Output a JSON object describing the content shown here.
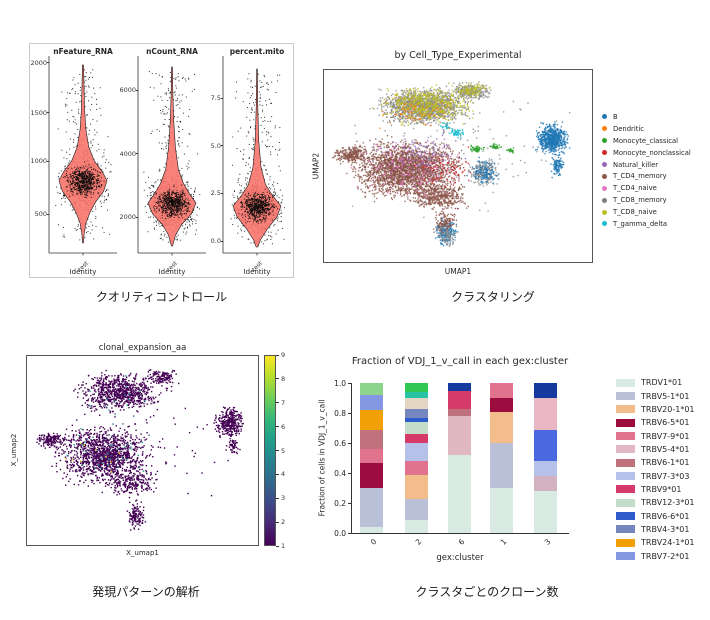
{
  "panels": {
    "qc": {
      "caption": "クオリティコントロール",
      "xlabel": "Identity",
      "xtick": "test",
      "violin_color": "#F8766D",
      "subplots": [
        {
          "title": "nFeature_RNA",
          "yticks": [
            "2000",
            "1500",
            "1000",
            "500"
          ]
        },
        {
          "title": "nCount_RNA",
          "yticks": [
            "6000",
            "4000",
            "2000"
          ]
        },
        {
          "title": "percent.mito",
          "yticks": [
            "7.5",
            "5.0",
            "2.5",
            "0.0"
          ]
        }
      ]
    },
    "clustering": {
      "caption": "クラスタリング",
      "title": "by Cell_Type_Experimental",
      "xlabel": "UMAP1",
      "ylabel": "UMAP2",
      "legend": [
        {
          "label": "B",
          "color": "#1f77b4"
        },
        {
          "label": "Dendritic",
          "color": "#ff7f0e"
        },
        {
          "label": "Monocyte_classical",
          "color": "#2ca02c"
        },
        {
          "label": "Monocyte_nonclassical",
          "color": "#d62728"
        },
        {
          "label": "Natural_killer",
          "color": "#9467bd"
        },
        {
          "label": "T_CD4_memory",
          "color": "#8c564b"
        },
        {
          "label": "T_CD4_naive",
          "color": "#e377c2"
        },
        {
          "label": "T_CD8_memory",
          "color": "#7f7f7f"
        },
        {
          "label": "T_CD8_naive",
          "color": "#bcbd22"
        },
        {
          "label": "T_gamma_delta",
          "color": "#17becf"
        }
      ]
    },
    "expression": {
      "caption": "発現パターンの解析",
      "title": "clonal_expansion_aa",
      "xlabel": "X_umap1",
      "ylabel": "X_umap2",
      "colorbar_ticks": [
        "9",
        "8",
        "7",
        "6",
        "5",
        "4",
        "3",
        "2",
        "1"
      ]
    },
    "clones": {
      "caption": "クラスタごとのクローン数",
      "title": "Fraction of VDJ_1_v_call in each gex:cluster",
      "xlabel": "gex:cluster",
      "ylabel": "Fraction of cells in VDJ_1_v_call",
      "yticks": [
        "1.0",
        "0.8",
        "0.6",
        "0.4",
        "0.2",
        "0.0"
      ],
      "categories": [
        "0",
        "2",
        "6",
        "1",
        "3"
      ],
      "legend": [
        {
          "label": "TRDV1*01",
          "color": "#d8eae2"
        },
        {
          "label": "TRBV5-1*01",
          "color": "#b9c0d8"
        },
        {
          "label": "TRBV20-1*01",
          "color": "#f3bd8b"
        },
        {
          "label": "TRBV6-5*01",
          "color": "#9c0c3f"
        },
        {
          "label": "TRBV7-9*01",
          "color": "#e1738f"
        },
        {
          "label": "TRBV5-4*01",
          "color": "#dfb8c3"
        },
        {
          "label": "TRBV6-1*01",
          "color": "#bf717e"
        },
        {
          "label": "TRBV7-3*03",
          "color": "#b5c1e9"
        },
        {
          "label": "TRBV9*01",
          "color": "#d63a6b"
        },
        {
          "label": "TRBV12-3*01",
          "color": "#c3ddc9"
        },
        {
          "label": "TRBV6-6*01",
          "color": "#2e5ccb"
        },
        {
          "label": "TRBV4-3*01",
          "color": "#7687bf"
        },
        {
          "label": "TRBV24-1*01",
          "color": "#f2a007"
        },
        {
          "label": "TRBV7-2*01",
          "color": "#8497e2"
        }
      ]
    }
  },
  "chart_data": [
    {
      "id": "qc_violins",
      "type": "violin",
      "xlabel": "Identity",
      "x_category": "test",
      "fill": "#F8766D",
      "panels": [
        {
          "title": "nFeature_RNA",
          "yticks": [
            2000,
            1500,
            1000,
            500
          ],
          "approx": {
            "median": 830,
            "min": 220,
            "max": 1980
          },
          "bulge": 0.65,
          "profile": [
            [
              0,
              0.01
            ],
            [
              0.12,
              0.018
            ],
            [
              0.25,
              0.028
            ],
            [
              0.36,
              0.05
            ],
            [
              0.46,
              0.1
            ],
            [
              0.54,
              0.2
            ],
            [
              0.6,
              0.34
            ],
            [
              0.65,
              0.42
            ],
            [
              0.71,
              0.36
            ],
            [
              0.77,
              0.22
            ],
            [
              0.83,
              0.12
            ],
            [
              0.89,
              0.05
            ],
            [
              0.95,
              0.02
            ],
            [
              1,
              0.008
            ]
          ]
        },
        {
          "title": "nCount_RNA",
          "yticks": [
            6000,
            4000,
            2000
          ],
          "approx": {
            "median": 2450,
            "min": 1300,
            "max": 6700
          },
          "bulge": 0.76,
          "profile": [
            [
              0,
              0.008
            ],
            [
              0.15,
              0.015
            ],
            [
              0.3,
              0.03
            ],
            [
              0.45,
              0.06
            ],
            [
              0.57,
              0.11
            ],
            [
              0.65,
              0.2
            ],
            [
              0.71,
              0.31
            ],
            [
              0.76,
              0.42
            ],
            [
              0.82,
              0.34
            ],
            [
              0.88,
              0.17
            ],
            [
              0.94,
              0.06
            ],
            [
              1,
              0.01
            ]
          ]
        },
        {
          "title": "percent.mito",
          "yticks": [
            7.5,
            5.0,
            2.5,
            0.0
          ],
          "approx": {
            "median": 2.0,
            "min": 0.05,
            "max": 9.0
          },
          "bulge": 0.77,
          "profile": [
            [
              0,
              0.007
            ],
            [
              0.2,
              0.013
            ],
            [
              0.4,
              0.03
            ],
            [
              0.55,
              0.07
            ],
            [
              0.65,
              0.15
            ],
            [
              0.71,
              0.27
            ],
            [
              0.77,
              0.42
            ],
            [
              0.83,
              0.35
            ],
            [
              0.9,
              0.18
            ],
            [
              0.96,
              0.06
            ],
            [
              1,
              0.015
            ]
          ]
        }
      ]
    },
    {
      "id": "umap_celltype",
      "type": "scatter",
      "title": "by Cell_Type_Experimental",
      "xlabel": "UMAP1",
      "ylabel": "UMAP2",
      "blobs": [
        {
          "n": 1500,
          "cx": 0.37,
          "cy": 0.19,
          "rx": 0.13,
          "ry": 0.075,
          "color": "#8c8c8c"
        },
        {
          "n": 260,
          "cx": 0.55,
          "cy": 0.11,
          "rx": 0.06,
          "ry": 0.035,
          "color": "#8c8c8c"
        },
        {
          "n": 550,
          "cx": 0.38,
          "cy": 0.18,
          "rx": 0.13,
          "ry": 0.075,
          "color": "#bcbd22"
        },
        {
          "n": 90,
          "cx": 0.55,
          "cy": 0.1,
          "rx": 0.05,
          "ry": 0.03,
          "color": "#bcbd22"
        },
        {
          "n": 2400,
          "cx": 0.31,
          "cy": 0.52,
          "rx": 0.155,
          "ry": 0.12,
          "color": "#8c564b"
        },
        {
          "n": 260,
          "cx": 0.1,
          "cy": 0.44,
          "rx": 0.05,
          "ry": 0.035,
          "color": "#8c564b"
        },
        {
          "n": 420,
          "cx": 0.43,
          "cy": 0.66,
          "rx": 0.09,
          "ry": 0.06,
          "color": "#8c564b"
        },
        {
          "n": 170,
          "cx": 0.32,
          "cy": 0.52,
          "rx": 0.15,
          "ry": 0.11,
          "color": "#e377c2"
        },
        {
          "n": 110,
          "cx": 0.35,
          "cy": 0.44,
          "rx": 0.14,
          "ry": 0.09,
          "color": "#9467bd"
        },
        {
          "n": 80,
          "cx": 0.45,
          "cy": 0.52,
          "rx": 0.1,
          "ry": 0.08,
          "color": "#d62728"
        },
        {
          "n": 70,
          "cx": 0.36,
          "cy": 0.22,
          "rx": 0.12,
          "ry": 0.07,
          "color": "#ff7f0e"
        },
        {
          "n": 45,
          "cx": 0.5,
          "cy": 0.33,
          "rx": 0.025,
          "ry": 0.018,
          "color": "#17becf"
        },
        {
          "n": 25,
          "cx": 0.46,
          "cy": 0.29,
          "rx": 0.02,
          "ry": 0.014,
          "color": "#17becf"
        },
        {
          "n": 55,
          "cx": 0.57,
          "cy": 0.41,
          "rx": 0.025,
          "ry": 0.016,
          "color": "#2ca02c"
        },
        {
          "n": 35,
          "cx": 0.64,
          "cy": 0.4,
          "rx": 0.018,
          "ry": 0.012,
          "color": "#2ca02c"
        },
        {
          "n": 22,
          "cx": 0.7,
          "cy": 0.42,
          "rx": 0.012,
          "ry": 0.01,
          "color": "#2ca02c"
        },
        {
          "n": 200,
          "cx": 0.6,
          "cy": 0.53,
          "rx": 0.045,
          "ry": 0.055,
          "color": "#8c8c8c"
        },
        {
          "n": 130,
          "cx": 0.6,
          "cy": 0.53,
          "rx": 0.045,
          "ry": 0.055,
          "color": "#1f77b4"
        },
        {
          "n": 650,
          "cx": 0.855,
          "cy": 0.36,
          "rx": 0.045,
          "ry": 0.06,
          "color": "#1f77b4"
        },
        {
          "n": 110,
          "cx": 0.875,
          "cy": 0.5,
          "rx": 0.018,
          "ry": 0.045,
          "color": "#1f77b4"
        },
        {
          "n": 230,
          "cx": 0.455,
          "cy": 0.85,
          "rx": 0.03,
          "ry": 0.055,
          "color": "#1f77b4"
        },
        {
          "n": 120,
          "cx": 0.45,
          "cy": 0.8,
          "rx": 0.035,
          "ry": 0.05,
          "color": "#8c564b"
        },
        {
          "n": 80,
          "cx": 0.46,
          "cy": 0.87,
          "rx": 0.025,
          "ry": 0.04,
          "color": "#8c8c8c"
        },
        {
          "n": 120,
          "cx": 0.5,
          "cy": 0.45,
          "rx": 0.3,
          "ry": 0.25,
          "color": "#8c8c8c"
        }
      ]
    },
    {
      "id": "umap_clonal",
      "type": "scatter",
      "title": "clonal_expansion_aa",
      "xlabel": "X_umap1",
      "ylabel": "X_umap2",
      "colorbar": {
        "colormap": "viridis",
        "min": 1,
        "max": 9,
        "ticks": [
          1,
          2,
          3,
          4,
          5,
          6,
          7,
          8,
          9
        ],
        "stops": [
          "#fde725",
          "#b5de2b",
          "#6ece58",
          "#35b779",
          "#1f9e89",
          "#26828e",
          "#31688e",
          "#3e4989",
          "#482878",
          "#440154"
        ]
      },
      "dominant_value": 1,
      "blobs": [
        {
          "n": 800,
          "cx": 0.4,
          "cy": 0.19,
          "rx": 0.14,
          "ry": 0.08,
          "color": "#440154"
        },
        {
          "n": 130,
          "cx": 0.58,
          "cy": 0.11,
          "rx": 0.06,
          "ry": 0.035,
          "color": "#440154"
        },
        {
          "n": 1300,
          "cx": 0.33,
          "cy": 0.52,
          "rx": 0.16,
          "ry": 0.12,
          "color": "#440154"
        },
        {
          "n": 150,
          "cx": 0.1,
          "cy": 0.44,
          "rx": 0.05,
          "ry": 0.035,
          "color": "#440154"
        },
        {
          "n": 220,
          "cx": 0.45,
          "cy": 0.67,
          "rx": 0.09,
          "ry": 0.055,
          "color": "#440154"
        },
        {
          "n": 330,
          "cx": 0.875,
          "cy": 0.35,
          "rx": 0.05,
          "ry": 0.065,
          "color": "#440154"
        },
        {
          "n": 50,
          "cx": 0.89,
          "cy": 0.48,
          "rx": 0.02,
          "ry": 0.04,
          "color": "#440154"
        },
        {
          "n": 130,
          "cx": 0.47,
          "cy": 0.84,
          "rx": 0.03,
          "ry": 0.06,
          "color": "#440154"
        },
        {
          "n": 80,
          "cx": 0.5,
          "cy": 0.45,
          "rx": 0.3,
          "ry": 0.25,
          "color": "#440154"
        },
        {
          "n": 30,
          "cx": 0.35,
          "cy": 0.5,
          "rx": 0.16,
          "ry": 0.12,
          "color": "#1f948c"
        },
        {
          "n": 15,
          "cx": 0.4,
          "cy": 0.2,
          "rx": 0.13,
          "ry": 0.07,
          "color": "#1f948c"
        },
        {
          "n": 10,
          "cx": 0.33,
          "cy": 0.55,
          "rx": 0.14,
          "ry": 0.1,
          "color": "#fde725"
        },
        {
          "n": 20,
          "cx": 0.38,
          "cy": 0.45,
          "rx": 0.15,
          "ry": 0.12,
          "color": "#33638d"
        }
      ]
    },
    {
      "id": "vdj_fraction",
      "type": "bar",
      "stacked": true,
      "title": "Fraction of VDJ_1_v_call in each gex:cluster",
      "xlabel": "gex:cluster",
      "ylabel": "Fraction of cells in VDJ_1_v_call",
      "ylim": [
        0,
        1
      ],
      "yticks": [
        1.0,
        0.8,
        0.6,
        0.4,
        0.2,
        0.0
      ],
      "categories": [
        "0",
        "2",
        "6",
        "1",
        "3"
      ],
      "bars": {
        "0": [
          {
            "label": "TRDV1*01",
            "color": "#d8eae2",
            "value": 0.04
          },
          {
            "label": "TRBV5-1*01",
            "color": "#b9c0d8",
            "value": 0.26
          },
          {
            "label": "TRBV6-5*01",
            "color": "#9c0c3f",
            "value": 0.17
          },
          {
            "label": "TRBV7-9*01",
            "color": "#e1738f",
            "value": 0.09
          },
          {
            "label": "TRBV6-1*01",
            "color": "#bf717e",
            "value": 0.13
          },
          {
            "label": "TRBV24-1*01",
            "color": "#f2a007",
            "value": 0.13
          },
          {
            "label": "TRBV7-2*01",
            "color": "#8497e2",
            "value": 0.1
          },
          {
            "label": "",
            "color": "#8ed48d",
            "value": 0.08
          }
        ],
        "2": [
          {
            "label": "TRDV1*01",
            "color": "#d8eae2",
            "value": 0.09
          },
          {
            "label": "TRBV5-1*01",
            "color": "#b9c0d8",
            "value": 0.14
          },
          {
            "label": "TRBV20-1*01",
            "color": "#f3bd8b",
            "value": 0.16
          },
          {
            "label": "TRBV7-9*01",
            "color": "#e1738f",
            "value": 0.09
          },
          {
            "label": "TRBV7-3*03",
            "color": "#b5c1e9",
            "value": 0.12
          },
          {
            "label": "TRBV9*01",
            "color": "#d63a6b",
            "value": 0.06
          },
          {
            "label": "TRBV12-3*01",
            "color": "#c3ddc9",
            "value": 0.08
          },
          {
            "label": "TRBV6-6*01",
            "color": "#2e5ccb",
            "value": 0.03
          },
          {
            "label": "TRBV4-3*01",
            "color": "#7687bf",
            "value": 0.06
          },
          {
            "label": "",
            "color": "#e4d6c2",
            "value": 0.07
          },
          {
            "label": "",
            "color": "#27c3a4",
            "value": 0.04
          },
          {
            "label": "",
            "color": "#2ec852",
            "value": 0.06
          }
        ],
        "6": [
          {
            "label": "TRDV1*01",
            "color": "#d8eae2",
            "value": 0.52
          },
          {
            "label": "TRBV5-4*01",
            "color": "#dfb8c3",
            "value": 0.26
          },
          {
            "label": "TRBV6-1*01",
            "color": "#bf717e",
            "value": 0.05
          },
          {
            "label": "TRBV9*01",
            "color": "#d63a6b",
            "value": 0.12
          },
          {
            "label": "",
            "color": "#16399e",
            "value": 0.05
          }
        ],
        "1": [
          {
            "label": "TRDV1*01",
            "color": "#d8eae2",
            "value": 0.3
          },
          {
            "label": "TRBV5-1*01",
            "color": "#b9c0d8",
            "value": 0.3
          },
          {
            "label": "TRBV20-1*01",
            "color": "#f3bd8b",
            "value": 0.21
          },
          {
            "label": "TRBV6-5*01",
            "color": "#9c0c3f",
            "value": 0.09
          },
          {
            "label": "TRBV7-9*01",
            "color": "#e1738f",
            "value": 0.1
          }
        ],
        "3": [
          {
            "label": "TRDV1*01",
            "color": "#d8eae2",
            "value": 0.28
          },
          {
            "label": "TRBV5-4*01",
            "color": "#d2b2c0",
            "value": 0.1
          },
          {
            "label": "TRBV7-3*03",
            "color": "#b5c1e9",
            "value": 0.1
          },
          {
            "label": "TRBV6-6*01",
            "color": "#4a68e0",
            "value": 0.21
          },
          {
            "label": "",
            "color": "#e9b7c3",
            "value": 0.21
          },
          {
            "label": "",
            "color": "#16399e",
            "value": 0.1
          }
        ]
      }
    }
  ]
}
